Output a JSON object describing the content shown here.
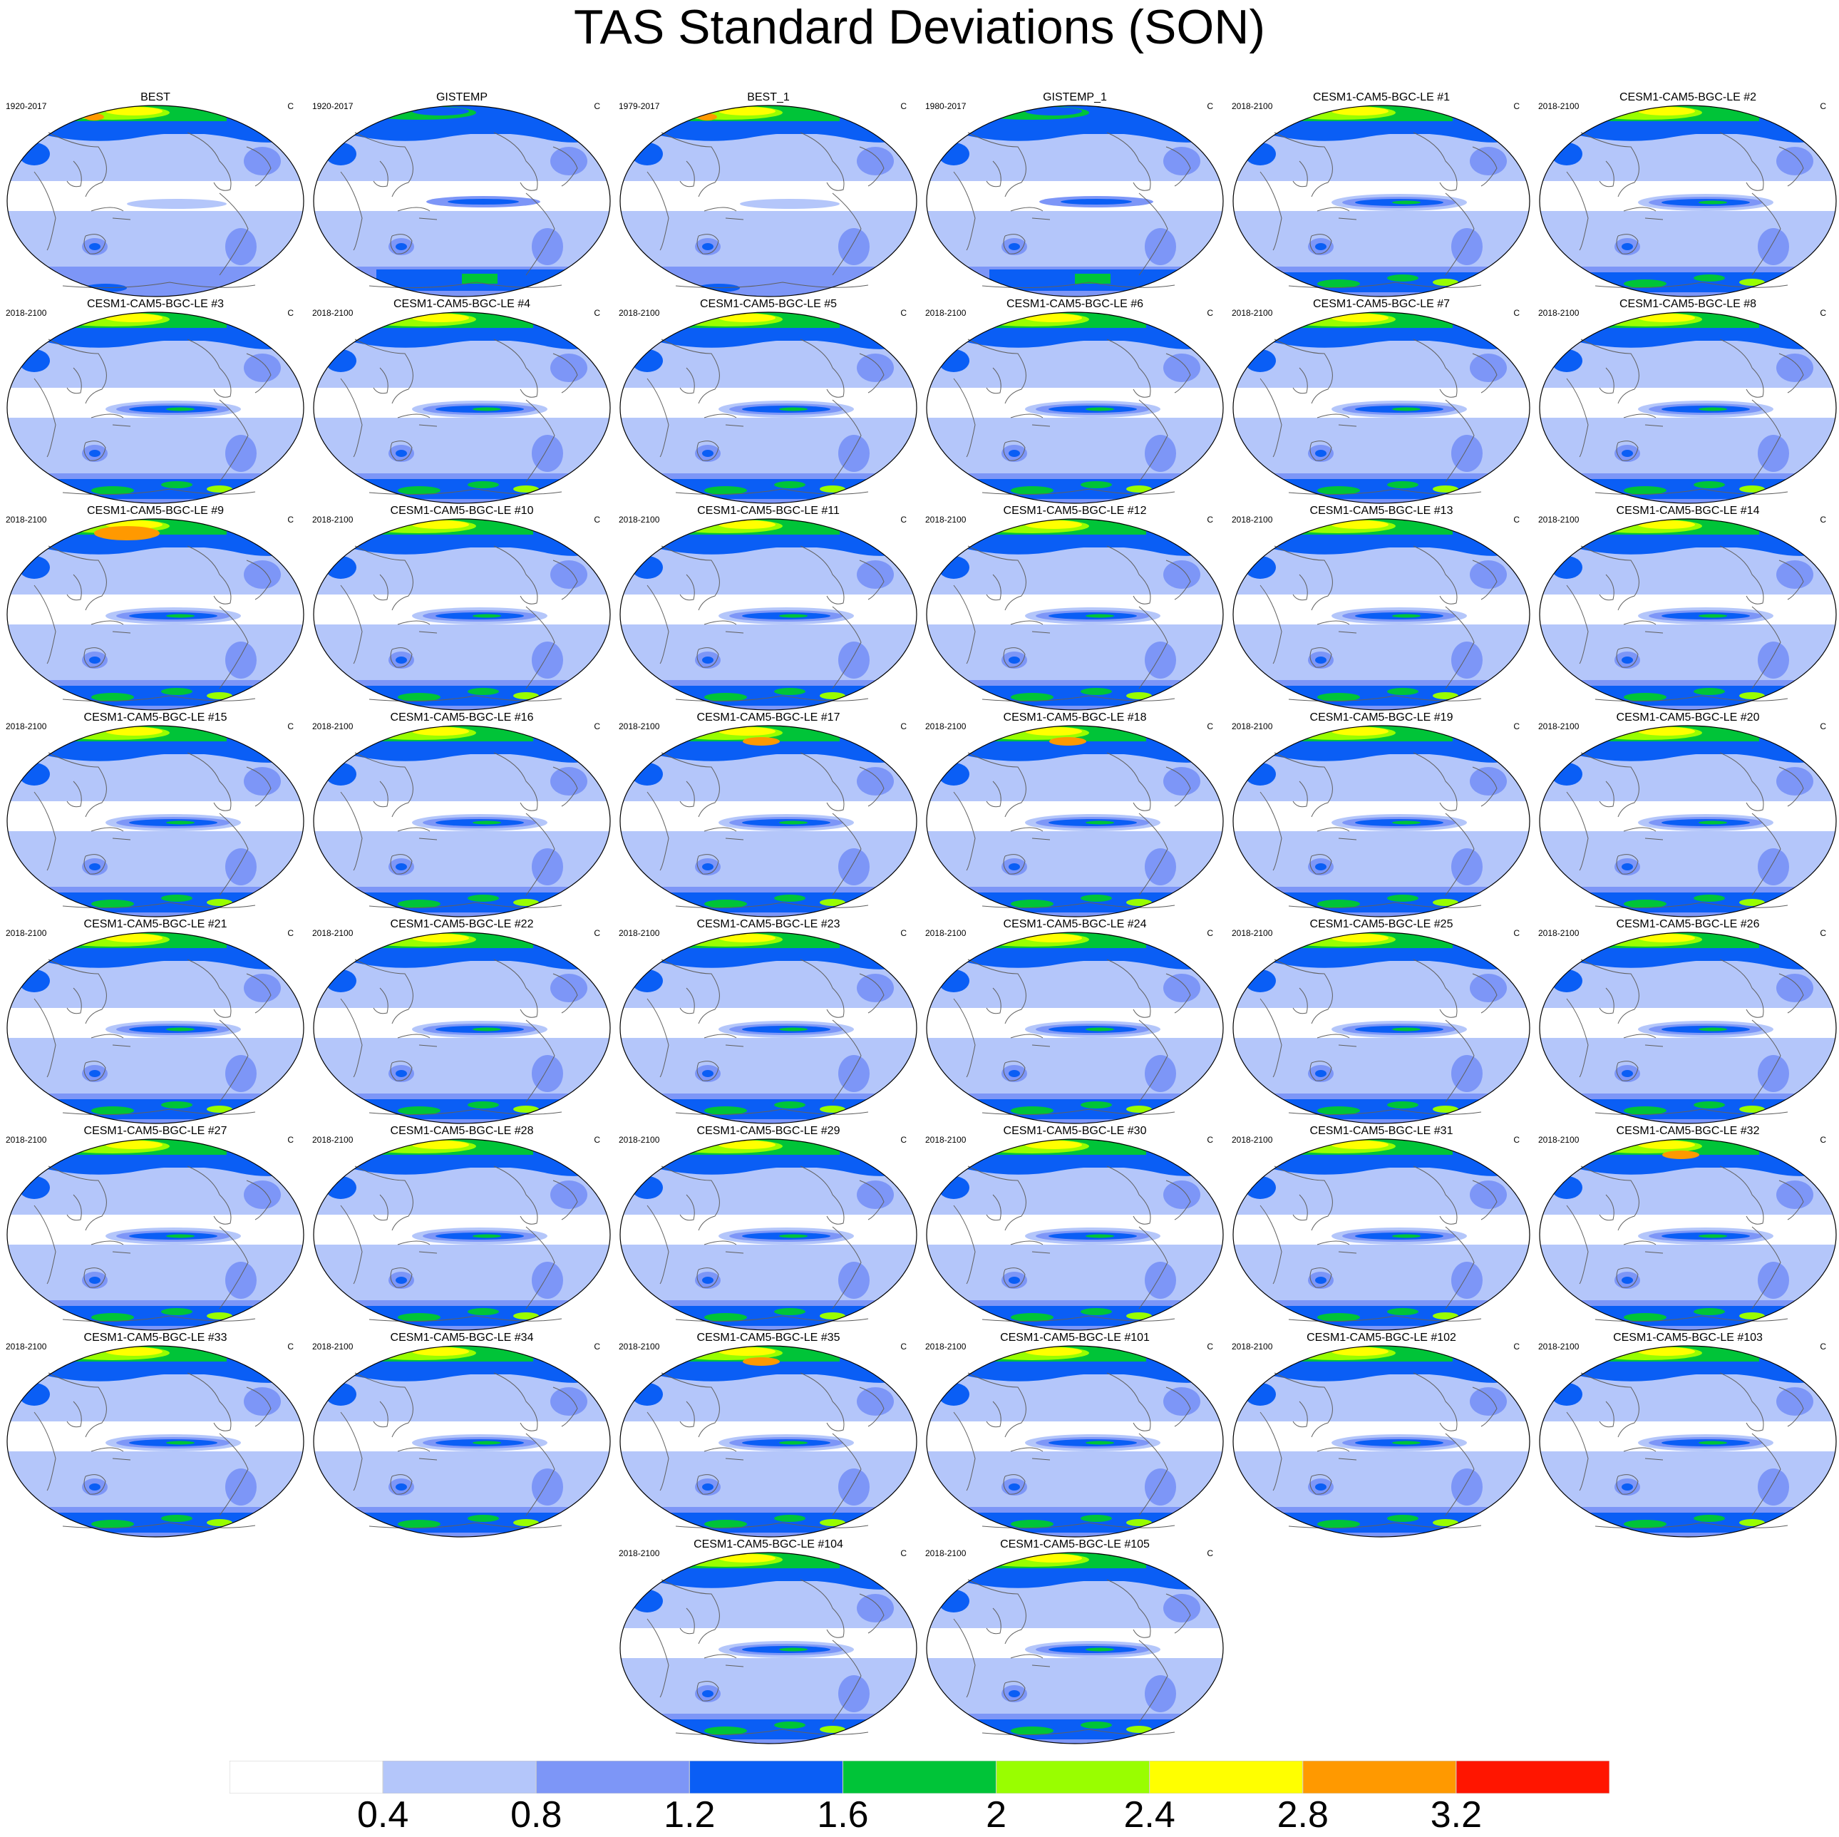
{
  "title": "TAS Standard Deviations (SON)",
  "units": "C",
  "colors": {
    "background": "#ffffff",
    "coastline": "#606060",
    "levels": [
      "#ffffff",
      "#b4c6fa",
      "#7d96f7",
      "#0a5ef5",
      "#00c438",
      "#99fe00",
      "#ffff00",
      "#ff9900",
      "#ff1500"
    ]
  },
  "colorbar": {
    "labels": [
      "0.4",
      "0.8",
      "1.2",
      "1.6",
      "2",
      "2.4",
      "2.8",
      "3.2"
    ]
  },
  "panels": [
    {
      "title": "BEST",
      "period": "1920-2017",
      "variant": "obs"
    },
    {
      "title": "GISTEMP",
      "period": "1920-2017",
      "variant": "gis"
    },
    {
      "title": "BEST_1",
      "period": "1979-2017",
      "variant": "obs"
    },
    {
      "title": "GISTEMP_1",
      "period": "1980-2017",
      "variant": "gis"
    },
    {
      "title": "CESM1-CAM5-BGC-LE #1",
      "period": "2018-2100",
      "variant": "model"
    },
    {
      "title": "CESM1-CAM5-BGC-LE #2",
      "period": "2018-2100",
      "variant": "model"
    },
    {
      "title": "CESM1-CAM5-BGC-LE #3",
      "period": "2018-2100",
      "variant": "model"
    },
    {
      "title": "CESM1-CAM5-BGC-LE #4",
      "period": "2018-2100",
      "variant": "model"
    },
    {
      "title": "CESM1-CAM5-BGC-LE #5",
      "period": "2018-2100",
      "variant": "model"
    },
    {
      "title": "CESM1-CAM5-BGC-LE #6",
      "period": "2018-2100",
      "variant": "model"
    },
    {
      "title": "CESM1-CAM5-BGC-LE #7",
      "period": "2018-2100",
      "variant": "model"
    },
    {
      "title": "CESM1-CAM5-BGC-LE #8",
      "period": "2018-2100",
      "variant": "model"
    },
    {
      "title": "CESM1-CAM5-BGC-LE #9",
      "period": "2018-2100",
      "variant": "hot"
    },
    {
      "title": "CESM1-CAM5-BGC-LE #10",
      "period": "2018-2100",
      "variant": "model"
    },
    {
      "title": "CESM1-CAM5-BGC-LE #11",
      "period": "2018-2100",
      "variant": "model"
    },
    {
      "title": "CESM1-CAM5-BGC-LE #12",
      "period": "2018-2100",
      "variant": "model"
    },
    {
      "title": "CESM1-CAM5-BGC-LE #13",
      "period": "2018-2100",
      "variant": "model"
    },
    {
      "title": "CESM1-CAM5-BGC-LE #14",
      "period": "2018-2100",
      "variant": "model"
    },
    {
      "title": "CESM1-CAM5-BGC-LE #15",
      "period": "2018-2100",
      "variant": "model"
    },
    {
      "title": "CESM1-CAM5-BGC-LE #16",
      "period": "2018-2100",
      "variant": "model"
    },
    {
      "title": "CESM1-CAM5-BGC-LE #17",
      "period": "2018-2100",
      "variant": "warm"
    },
    {
      "title": "CESM1-CAM5-BGC-LE #18",
      "period": "2018-2100",
      "variant": "warm"
    },
    {
      "title": "CESM1-CAM5-BGC-LE #19",
      "period": "2018-2100",
      "variant": "model"
    },
    {
      "title": "CESM1-CAM5-BGC-LE #20",
      "period": "2018-2100",
      "variant": "model"
    },
    {
      "title": "CESM1-CAM5-BGC-LE #21",
      "period": "2018-2100",
      "variant": "model"
    },
    {
      "title": "CESM1-CAM5-BGC-LE #22",
      "period": "2018-2100",
      "variant": "model"
    },
    {
      "title": "CESM1-CAM5-BGC-LE #23",
      "period": "2018-2100",
      "variant": "model"
    },
    {
      "title": "CESM1-CAM5-BGC-LE #24",
      "period": "2018-2100",
      "variant": "model"
    },
    {
      "title": "CESM1-CAM5-BGC-LE #25",
      "period": "2018-2100",
      "variant": "model"
    },
    {
      "title": "CESM1-CAM5-BGC-LE #26",
      "period": "2018-2100",
      "variant": "model"
    },
    {
      "title": "CESM1-CAM5-BGC-LE #27",
      "period": "2018-2100",
      "variant": "model"
    },
    {
      "title": "CESM1-CAM5-BGC-LE #28",
      "period": "2018-2100",
      "variant": "model"
    },
    {
      "title": "CESM1-CAM5-BGC-LE #29",
      "period": "2018-2100",
      "variant": "model"
    },
    {
      "title": "CESM1-CAM5-BGC-LE #30",
      "period": "2018-2100",
      "variant": "model"
    },
    {
      "title": "CESM1-CAM5-BGC-LE #31",
      "period": "2018-2100",
      "variant": "model"
    },
    {
      "title": "CESM1-CAM5-BGC-LE #32",
      "period": "2018-2100",
      "variant": "warm"
    },
    {
      "title": "CESM1-CAM5-BGC-LE #33",
      "period": "2018-2100",
      "variant": "model"
    },
    {
      "title": "CESM1-CAM5-BGC-LE #34",
      "period": "2018-2100",
      "variant": "model"
    },
    {
      "title": "CESM1-CAM5-BGC-LE #35",
      "period": "2018-2100",
      "variant": "warm"
    },
    {
      "title": "CESM1-CAM5-BGC-LE #101",
      "period": "2018-2100",
      "variant": "model"
    },
    {
      "title": "CESM1-CAM5-BGC-LE #102",
      "period": "2018-2100",
      "variant": "model"
    },
    {
      "title": "CESM1-CAM5-BGC-LE #103",
      "period": "2018-2100",
      "variant": "model"
    },
    {
      "title": "CESM1-CAM5-BGC-LE #104",
      "period": "2018-2100",
      "variant": "model"
    },
    {
      "title": "CESM1-CAM5-BGC-LE #105",
      "period": "2018-2100",
      "variant": "model"
    }
  ]
}
